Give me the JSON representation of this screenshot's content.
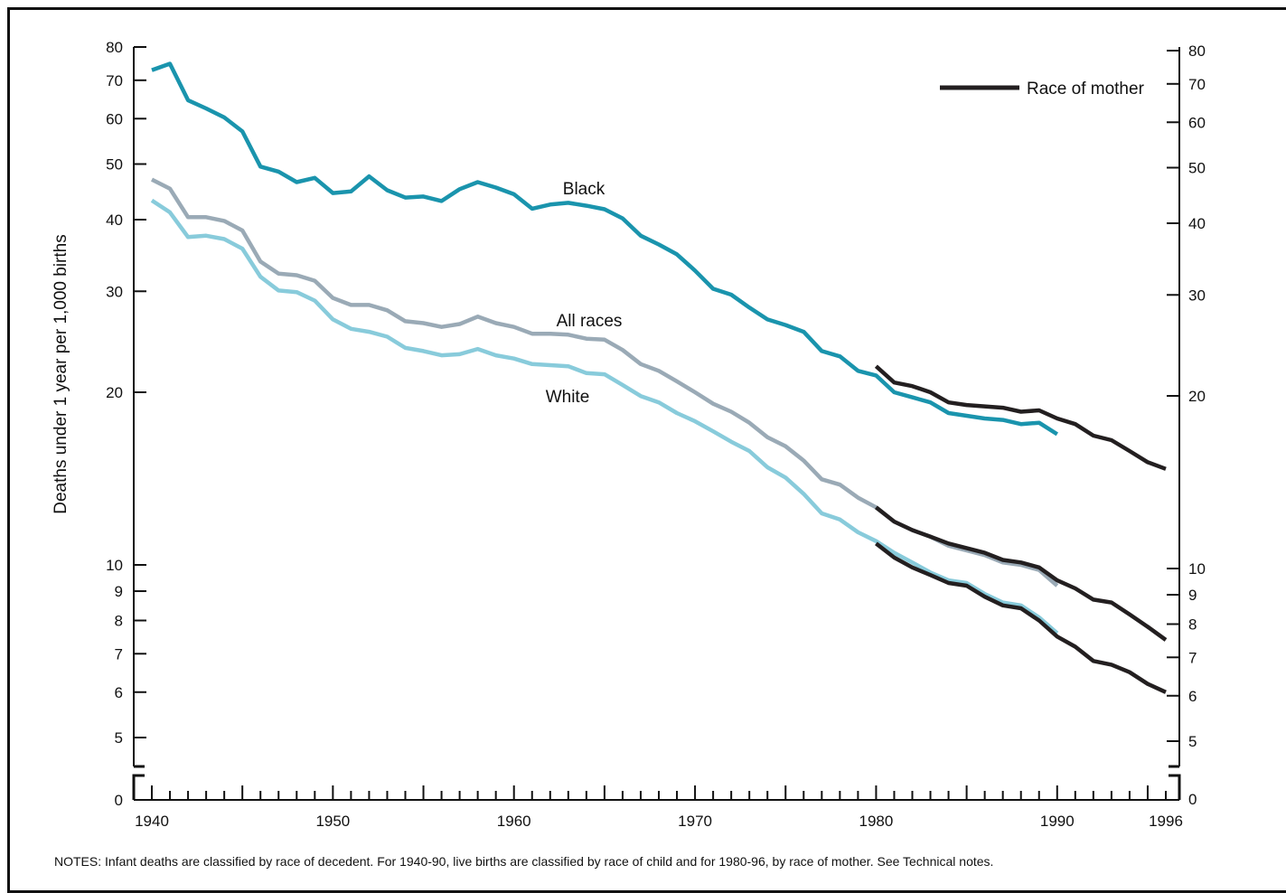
{
  "chart_data": {
    "type": "line",
    "y_scale": "log",
    "ylabel": "Deaths under 1 year per 1,000 births",
    "xlim": [
      1940,
      1996
    ],
    "ylim": [
      5,
      80
    ],
    "x_ticks": [
      1940,
      1950,
      1960,
      1970,
      1980,
      1990,
      1996
    ],
    "y_ticks": [
      5,
      6,
      7,
      8,
      9,
      10,
      20,
      30,
      40,
      50,
      60,
      70,
      80
    ],
    "y_zero_label": "0",
    "series_labels": [
      "Black",
      "All races",
      "White"
    ],
    "legend": {
      "label": "Race of mother",
      "placement": "top-right"
    },
    "notes": "NOTES: Infant deaths are classified by race of decedent. For 1940-90, live births are classified by race of child and for 1980-96, by race of mother. See Technical notes.",
    "colors": {
      "black": "#1a94ad",
      "all_races": "#9aaab6",
      "white": "#88cbdb",
      "race_of_mother": "#231f20"
    },
    "series": [
      {
        "name": "Black",
        "color": "#1a94ad",
        "x_start": 1940,
        "values": [
          72.9,
          74.8,
          64.6,
          62.5,
          60.3,
          57.0,
          49.5,
          48.5,
          46.5,
          47.3,
          44.5,
          44.8,
          47.6,
          45.0,
          43.7,
          43.9,
          43.1,
          45.2,
          46.5,
          45.5,
          44.3,
          41.8,
          42.5,
          42.8,
          42.3,
          41.7,
          40.2,
          37.5,
          36.2,
          34.8,
          32.6,
          30.3,
          29.6,
          28.1,
          26.8,
          26.2,
          25.5,
          23.6,
          23.1,
          21.8,
          21.4,
          20.0,
          19.6,
          19.2,
          18.4,
          18.2,
          18.0,
          17.9,
          17.6,
          17.7,
          16.9
        ]
      },
      {
        "name": "All races",
        "color": "#9aaab6",
        "x_start": 1940,
        "values": [
          47.0,
          45.3,
          40.4,
          40.4,
          39.8,
          38.3,
          33.8,
          32.2,
          32.0,
          31.3,
          29.2,
          28.4,
          28.4,
          27.8,
          26.6,
          26.4,
          26.0,
          26.3,
          27.1,
          26.4,
          26.0,
          25.3,
          25.3,
          25.2,
          24.8,
          24.7,
          23.7,
          22.4,
          21.8,
          20.9,
          20.0,
          19.1,
          18.5,
          17.7,
          16.7,
          16.1,
          15.2,
          14.1,
          13.8,
          13.1,
          12.6,
          11.9,
          11.5,
          11.2,
          10.8,
          10.6,
          10.4,
          10.1,
          10.0,
          9.8,
          9.2
        ]
      },
      {
        "name": "White",
        "color": "#88cbdb",
        "x_start": 1940,
        "values": [
          43.2,
          41.2,
          37.3,
          37.5,
          37.0,
          35.6,
          31.8,
          30.1,
          29.9,
          28.9,
          26.8,
          25.8,
          25.5,
          25.0,
          23.9,
          23.6,
          23.2,
          23.3,
          23.8,
          23.2,
          22.9,
          22.4,
          22.3,
          22.2,
          21.6,
          21.5,
          20.6,
          19.7,
          19.2,
          18.4,
          17.8,
          17.1,
          16.4,
          15.8,
          14.8,
          14.2,
          13.3,
          12.3,
          12.0,
          11.4,
          11.0,
          10.5,
          10.1,
          9.7,
          9.4,
          9.3,
          8.9,
          8.6,
          8.5,
          8.1,
          7.6
        ]
      },
      {
        "name": "Race of mother",
        "color": "#231f20",
        "x_start": 1980,
        "values": [
          22.2,
          20.8,
          20.5,
          20.0,
          19.2,
          19.0,
          18.9,
          18.8,
          18.5,
          18.6,
          18.0,
          17.6,
          16.8,
          16.5,
          15.8,
          15.1,
          14.7
        ]
      },
      {
        "name": "Race of mother",
        "color": "#231f20",
        "x_start": 1980,
        "values": [
          12.6,
          11.9,
          11.5,
          11.2,
          10.9,
          10.7,
          10.5,
          10.2,
          10.1,
          9.9,
          9.4,
          9.1,
          8.7,
          8.6,
          8.2,
          7.8,
          7.4
        ]
      },
      {
        "name": "Race of mother",
        "color": "#231f20",
        "x_start": 1980,
        "values": [
          10.9,
          10.3,
          9.9,
          9.6,
          9.3,
          9.2,
          8.8,
          8.5,
          8.4,
          8.0,
          7.5,
          7.2,
          6.8,
          6.7,
          6.5,
          6.2,
          6.0
        ]
      }
    ]
  }
}
